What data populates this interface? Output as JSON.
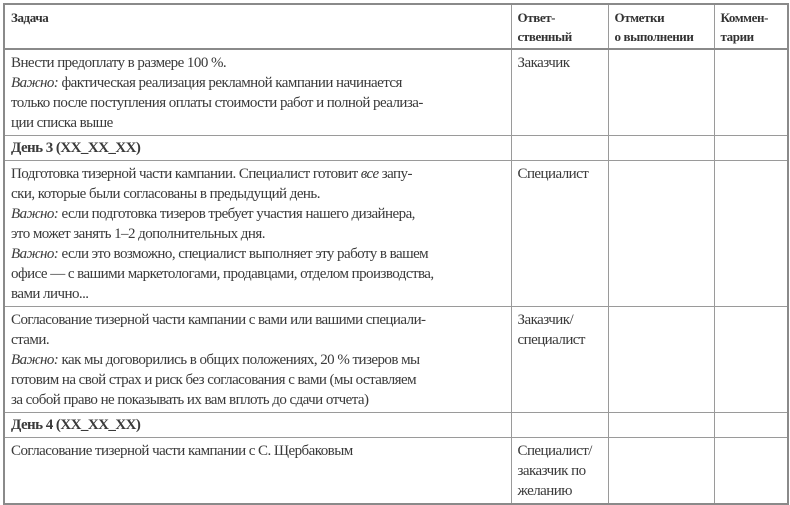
{
  "header": [
    "Задача",
    "Ответ-\nственный",
    "Отметки\nо выполнении",
    "Коммен-\nтарии"
  ],
  "rows": [
    {
      "type": "task",
      "lines": [
        [
          {
            "t": "Внести предоплату в размере 100 %."
          }
        ],
        [
          {
            "t": "Важно:",
            "i": true
          },
          {
            "t": " фактическая реализация рекламной кампании начинается"
          }
        ],
        [
          {
            "t": "только после поступления оплаты стоимости работ и полной реализа-"
          }
        ],
        [
          {
            "t": "ции списка выше"
          }
        ]
      ],
      "responsible": [
        "Заказчик"
      ],
      "done": "",
      "comment": ""
    },
    {
      "type": "day",
      "title": "День 3 (XX_XX_XX)"
    },
    {
      "type": "task",
      "lines": [
        [
          {
            "t": "Подготовка тизерной части кампании. Специалист готовит "
          },
          {
            "t": "все",
            "i": true
          },
          {
            "t": " запу-"
          }
        ],
        [
          {
            "t": "ски, которые были согласованы в предыдущий день."
          }
        ],
        [
          {
            "t": "Важно:",
            "i": true
          },
          {
            "t": " если подготовка тизеров требует участия нашего дизайнера,"
          }
        ],
        [
          {
            "t": "это может занять 1–2 дополнительных дня."
          }
        ],
        [
          {
            "t": "Важно:",
            "i": true
          },
          {
            "t": " если это возможно, специалист выполняет эту работу в вашем"
          }
        ],
        [
          {
            "t": "офисе — с вашими маркетологами, продавцами, отделом производства,"
          }
        ],
        [
          {
            "t": "вами лично..."
          }
        ]
      ],
      "responsible": [
        "Специалист"
      ],
      "done": "",
      "comment": ""
    },
    {
      "type": "task",
      "lines": [
        [
          {
            "t": "Согласование тизерной части кампании с вами или вашими специали-"
          }
        ],
        [
          {
            "t": "стами."
          }
        ],
        [
          {
            "t": "Важно:",
            "i": true
          },
          {
            "t": " как мы договорились в общих положениях, 20 % тизеров мы"
          }
        ],
        [
          {
            "t": "готовим на свой страх и риск без согласования с вами (мы оставляем"
          }
        ],
        [
          {
            "t": "за собой право не показывать их вам вплоть до сдачи отчета)"
          }
        ]
      ],
      "responsible": [
        "Заказчик/",
        "специалист"
      ],
      "done": "",
      "comment": ""
    },
    {
      "type": "day",
      "title": "День 4 (XX_XX_XX)"
    },
    {
      "type": "task",
      "lines": [
        [
          {
            "t": "Согласование тизерной части кампании с С. Щербаковым"
          }
        ]
      ],
      "responsible": [
        "Специалист/",
        "заказчик по",
        "желанию"
      ],
      "done": "",
      "comment": ""
    }
  ]
}
